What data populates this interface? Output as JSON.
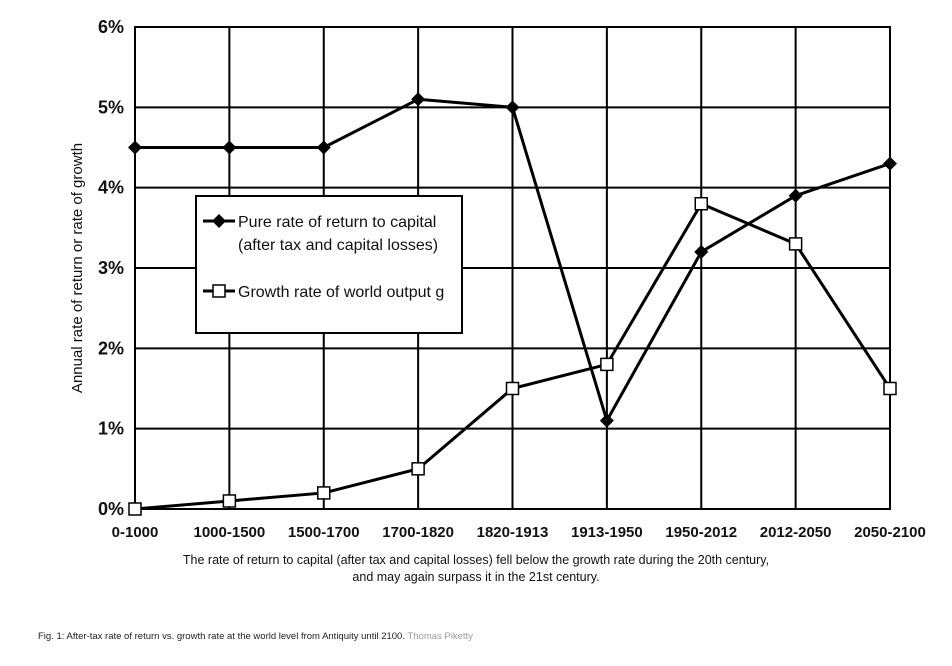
{
  "chart_data": {
    "type": "line",
    "categories": [
      "0-1000",
      "1000-1500",
      "1500-1700",
      "1700-1820",
      "1820-1913",
      "1913-1950",
      "1950-2012",
      "2012-2050",
      "2050-2100"
    ],
    "series": [
      {
        "name": "Pure rate of return to capital (after tax and capital losses)",
        "legend_lines": [
          "Pure rate of return to capital",
          "(after tax and capital losses)"
        ],
        "marker": "filled-diamond",
        "values": [
          4.5,
          4.5,
          4.5,
          5.1,
          5.0,
          1.1,
          3.2,
          3.9,
          4.3
        ]
      },
      {
        "name": "Growth rate of world output g",
        "legend_lines": [
          "Growth rate of world output g"
        ],
        "marker": "open-square",
        "values": [
          0.0,
          0.1,
          0.2,
          0.5,
          1.5,
          1.8,
          3.8,
          3.3,
          1.5
        ]
      }
    ],
    "ylabel": "Annual rate of return or rate of growth",
    "ylim": [
      0,
      6
    ],
    "yticks": [
      "0%",
      "1%",
      "2%",
      "3%",
      "4%",
      "5%",
      "6%"
    ],
    "grid": true,
    "legend_position": "center-left",
    "colors": {
      "line": "#000000",
      "grid": "#000000"
    }
  },
  "caption": {
    "line1": "The rate of return to capital (after tax and capital losses) fell below the growth rate during the 20th century,",
    "line2": "and may again surpass it in the 21st century."
  },
  "figure_caption": {
    "text": "Fig. 1: After-tax rate of return vs. growth rate at the world level from Antiquity until 2100.",
    "credit": "Thomas Piketty"
  }
}
